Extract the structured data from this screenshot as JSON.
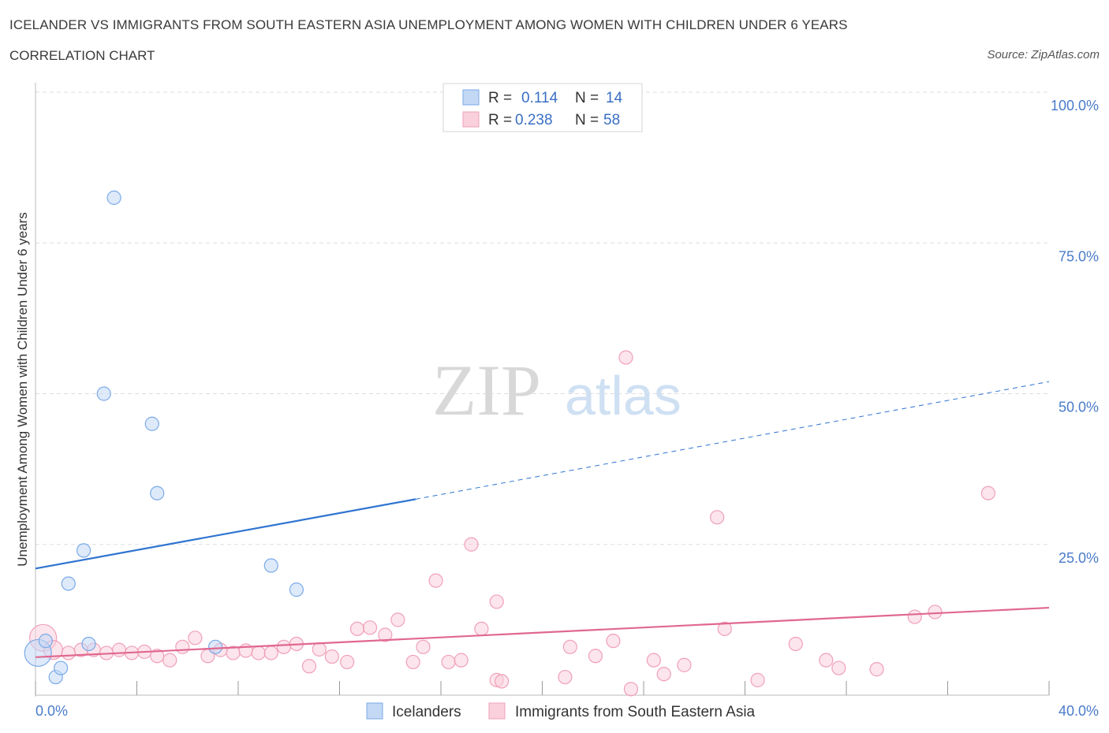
{
  "header": {
    "title": "ICELANDER VS IMMIGRANTS FROM SOUTH EASTERN ASIA UNEMPLOYMENT AMONG WOMEN WITH CHILDREN UNDER 6 YEARS",
    "subtitle": "CORRELATION CHART",
    "source": "Source: ZipAtlas.com"
  },
  "colors": {
    "blue": "#7aaae8",
    "blue_line": "#2f74d0",
    "pink": "#f0a0b8",
    "pink_line": "#e06890",
    "grid": "#dddddd",
    "label": "#4a7cc9"
  },
  "legend": {
    "r_label": "R =",
    "n_label": "N =",
    "rows": [
      {
        "series": "Icelanders",
        "r": "0.114",
        "n": "14"
      },
      {
        "series": "Immigrants from South Eastern Asia",
        "r": "0.238",
        "n": "58"
      }
    ]
  },
  "watermark": {
    "zip": "ZIP",
    "atlas": "atlas"
  },
  "chart_data": {
    "type": "scatter",
    "title": "ICELANDER VS IMMIGRANTS FROM SOUTH EASTERN ASIA UNEMPLOYMENT AMONG WOMEN WITH CHILDREN UNDER 6 YEARS",
    "xlabel": "",
    "ylabel": "Unemployment Among Women with Children Under 6 years",
    "xlim": [
      0,
      40
    ],
    "ylim": [
      0,
      100
    ],
    "x_tick_labels": [
      "0.0%",
      "40.0%"
    ],
    "y_tick_labels": [
      "100.0%",
      "75.0%",
      "50.0%",
      "25.0%"
    ],
    "y_ticks": [
      100,
      75,
      50,
      25
    ],
    "series": [
      {
        "name": "Icelanders",
        "color": "blue",
        "points": [
          {
            "x": 0.1,
            "y": 7.0,
            "size": "large"
          },
          {
            "x": 0.4,
            "y": 9.0
          },
          {
            "x": 0.8,
            "y": 3.0
          },
          {
            "x": 1.0,
            "y": 4.5
          },
          {
            "x": 1.3,
            "y": 18.5
          },
          {
            "x": 1.9,
            "y": 24.0
          },
          {
            "x": 2.1,
            "y": 8.5
          },
          {
            "x": 2.7,
            "y": 50.0
          },
          {
            "x": 3.1,
            "y": 82.5
          },
          {
            "x": 4.6,
            "y": 45.0
          },
          {
            "x": 4.8,
            "y": 33.5
          },
          {
            "x": 7.1,
            "y": 8.0
          },
          {
            "x": 9.3,
            "y": 21.5
          },
          {
            "x": 10.3,
            "y": 17.5
          }
        ],
        "trend": {
          "x0": 0,
          "y0": 21.0,
          "x1": 15.0,
          "y1": 32.5,
          "dashed_to": {
            "x": 40,
            "y": 52.0
          }
        }
      },
      {
        "name": "Immigrants from South Eastern Asia",
        "color": "pink",
        "points": [
          {
            "x": 0.3,
            "y": 9.5,
            "size": "large"
          },
          {
            "x": 0.7,
            "y": 7.5,
            "size": "medium"
          },
          {
            "x": 1.3,
            "y": 7.0
          },
          {
            "x": 1.8,
            "y": 7.5
          },
          {
            "x": 2.3,
            "y": 7.5
          },
          {
            "x": 2.8,
            "y": 7.0
          },
          {
            "x": 3.3,
            "y": 7.5
          },
          {
            "x": 3.8,
            "y": 7.0
          },
          {
            "x": 4.3,
            "y": 7.2
          },
          {
            "x": 4.8,
            "y": 6.5
          },
          {
            "x": 5.3,
            "y": 5.8
          },
          {
            "x": 5.8,
            "y": 8.0
          },
          {
            "x": 6.3,
            "y": 9.5
          },
          {
            "x": 6.8,
            "y": 6.5
          },
          {
            "x": 7.3,
            "y": 7.5
          },
          {
            "x": 7.8,
            "y": 7.0
          },
          {
            "x": 8.3,
            "y": 7.4
          },
          {
            "x": 8.8,
            "y": 7.0
          },
          {
            "x": 9.3,
            "y": 7.0
          },
          {
            "x": 9.8,
            "y": 8.0
          },
          {
            "x": 10.3,
            "y": 8.5
          },
          {
            "x": 10.8,
            "y": 4.8
          },
          {
            "x": 11.2,
            "y": 7.6
          },
          {
            "x": 11.7,
            "y": 6.4
          },
          {
            "x": 12.3,
            "y": 5.5
          },
          {
            "x": 12.7,
            "y": 11.0
          },
          {
            "x": 13.2,
            "y": 11.2
          },
          {
            "x": 13.8,
            "y": 10.0
          },
          {
            "x": 14.3,
            "y": 12.5
          },
          {
            "x": 14.9,
            "y": 5.5
          },
          {
            "x": 15.3,
            "y": 8.0
          },
          {
            "x": 15.8,
            "y": 19.0
          },
          {
            "x": 16.3,
            "y": 5.5
          },
          {
            "x": 16.8,
            "y": 5.8
          },
          {
            "x": 17.2,
            "y": 25.0
          },
          {
            "x": 17.6,
            "y": 11.0
          },
          {
            "x": 18.2,
            "y": 15.5
          },
          {
            "x": 18.2,
            "y": 2.5
          },
          {
            "x": 18.4,
            "y": 2.3
          },
          {
            "x": 20.9,
            "y": 3.0
          },
          {
            "x": 21.1,
            "y": 8.0
          },
          {
            "x": 22.1,
            "y": 6.5
          },
          {
            "x": 22.8,
            "y": 9.0
          },
          {
            "x": 23.3,
            "y": 56.0
          },
          {
            "x": 23.5,
            "y": 1.0
          },
          {
            "x": 24.4,
            "y": 5.8
          },
          {
            "x": 24.8,
            "y": 3.5
          },
          {
            "x": 25.6,
            "y": 5.0
          },
          {
            "x": 26.9,
            "y": 29.5
          },
          {
            "x": 27.2,
            "y": 11.0
          },
          {
            "x": 28.5,
            "y": 2.5
          },
          {
            "x": 30.0,
            "y": 8.5
          },
          {
            "x": 31.2,
            "y": 5.8
          },
          {
            "x": 31.7,
            "y": 4.5
          },
          {
            "x": 33.2,
            "y": 4.3
          },
          {
            "x": 34.7,
            "y": 13.0
          },
          {
            "x": 35.5,
            "y": 13.8
          },
          {
            "x": 37.6,
            "y": 33.5
          }
        ],
        "trend": {
          "x0": 0,
          "y0": 6.3,
          "x1": 40,
          "y1": 14.5
        }
      }
    ]
  }
}
